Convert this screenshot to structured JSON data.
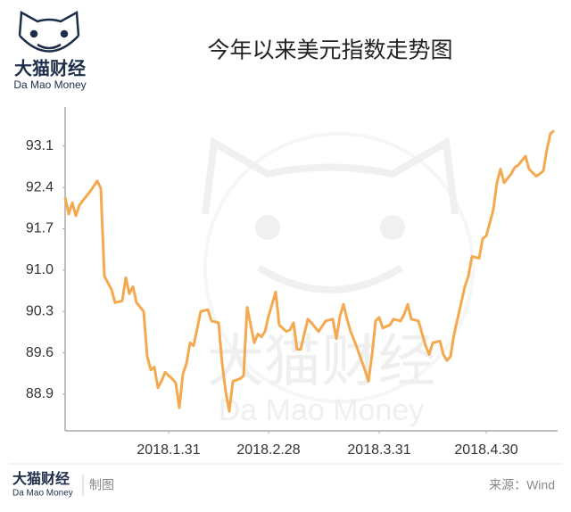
{
  "logo": {
    "name": "大猫财经",
    "sub": "Da Mao Money"
  },
  "watermark": {
    "name": "大猫财经",
    "sub": "Da Mao Money"
  },
  "footer": {
    "name": "大猫财经",
    "sub": "Da Mao Money",
    "note": "制图",
    "source": "来源：Wind"
  },
  "chart_data": {
    "type": "line",
    "title": "今年以来美元指数走势图",
    "color": "#f5a94f",
    "x": [
      "2018.1.2",
      "2018.1.3",
      "2018.1.4",
      "2018.1.5",
      "2018.1.6",
      "2018.1.7",
      "2018.1.9",
      "2018.1.11",
      "2018.1.12",
      "2018.1.13",
      "2018.1.15",
      "2018.1.16",
      "2018.1.18",
      "2018.1.19",
      "2018.1.20",
      "2018.1.21",
      "2018.1.22",
      "2018.1.24",
      "2018.1.25",
      "2018.1.26",
      "2018.1.27",
      "2018.1.28",
      "2018.1.29",
      "2018.1.30",
      "2018.2.1",
      "2018.2.2",
      "2018.2.3",
      "2018.2.4",
      "2018.2.5",
      "2018.2.6",
      "2018.2.7",
      "2018.2.9",
      "2018.2.11",
      "2018.2.12",
      "2018.2.14",
      "2018.2.15",
      "2018.2.16",
      "2018.2.17",
      "2018.2.18",
      "2018.2.20",
      "2018.2.21",
      "2018.2.22",
      "2018.2.24",
      "2018.2.25",
      "2018.2.26",
      "2018.2.27",
      "2018.2.28",
      "2018.3.2",
      "2018.3.3",
      "2018.3.5",
      "2018.3.6",
      "2018.3.7",
      "2018.3.8",
      "2018.3.9",
      "2018.3.11",
      "2018.3.12",
      "2018.3.14",
      "2018.3.16",
      "2018.3.18",
      "2018.3.19",
      "2018.3.20",
      "2018.3.21",
      "2018.3.22",
      "2018.3.23",
      "2018.3.24",
      "2018.3.25",
      "2018.3.27",
      "2018.3.28",
      "2018.3.29",
      "2018.3.30",
      "2018.3.31",
      "2018.4.1",
      "2018.4.3",
      "2018.4.4",
      "2018.4.6",
      "2018.4.7",
      "2018.4.8",
      "2018.4.9",
      "2018.4.11",
      "2018.4.13",
      "2018.4.14",
      "2018.4.15",
      "2018.4.17",
      "2018.4.18",
      "2018.4.19",
      "2018.4.20",
      "2018.4.21",
      "2018.4.23",
      "2018.4.24",
      "2018.4.25",
      "2018.4.26",
      "2018.4.28",
      "2018.4.29",
      "2018.4.30",
      "2018.5.1",
      "2018.5.2",
      "2018.5.3",
      "2018.5.4",
      "2018.5.5",
      "2018.5.7",
      "2018.5.8",
      "2018.5.9",
      "2018.5.11",
      "2018.5.12",
      "2018.5.14",
      "2018.5.15",
      "2018.5.16",
      "2018.5.17",
      "2018.5.18",
      "2018.5.19"
    ],
    "values": [
      92.23,
      91.95,
      92.14,
      91.92,
      92.1,
      92.18,
      92.33,
      92.51,
      92.38,
      90.9,
      90.67,
      90.45,
      90.48,
      90.87,
      90.6,
      90.72,
      90.45,
      90.3,
      89.54,
      89.31,
      89.36,
      89.01,
      89.12,
      89.27,
      89.16,
      89.09,
      88.67,
      89.24,
      89.42,
      89.77,
      89.72,
      90.3,
      90.33,
      90.14,
      90.11,
      89.42,
      88.94,
      88.61,
      89.12,
      89.16,
      89.21,
      90.37,
      89.77,
      89.92,
      89.87,
      89.96,
      90.22,
      90.63,
      90.07,
      89.96,
      89.99,
      90.11,
      89.66,
      89.66,
      90.17,
      90.11,
      89.96,
      90.14,
      90.17,
      89.84,
      90.22,
      90.42,
      90.17,
      89.96,
      89.81,
      89.65,
      89.31,
      89.12,
      89.57,
      90.14,
      90.2,
      90.02,
      90.07,
      90.17,
      90.14,
      90.25,
      90.42,
      90.17,
      90.14,
      89.72,
      89.57,
      89.77,
      89.8,
      89.57,
      89.47,
      89.54,
      89.92,
      90.45,
      90.72,
      90.9,
      91.23,
      91.2,
      91.53,
      91.58,
      91.8,
      92.03,
      92.48,
      92.71,
      92.48,
      92.63,
      92.74,
      92.78,
      92.93,
      92.71,
      92.59,
      92.63,
      92.68,
      93.04,
      93.31,
      93.36
    ],
    "xlim": [
      "2018.1.2",
      "2018.5.20"
    ],
    "xticks": [
      "2018.1.31",
      "2018.2.28",
      "2018.3.31",
      "2018.4.30"
    ],
    "ylim": [
      88.28,
      93.76
    ],
    "yticks": [
      {
        "value": 88.9,
        "label": "88.9"
      },
      {
        "value": 89.6,
        "label": "89.6"
      },
      {
        "value": 90.3,
        "label": "90.3"
      },
      {
        "value": 91.0,
        "label": "91.0"
      },
      {
        "value": 91.7,
        "label": "91.7"
      },
      {
        "value": 92.4,
        "label": "92.4"
      },
      {
        "value": 93.1,
        "label": "93.1"
      }
    ],
    "grid": false
  }
}
